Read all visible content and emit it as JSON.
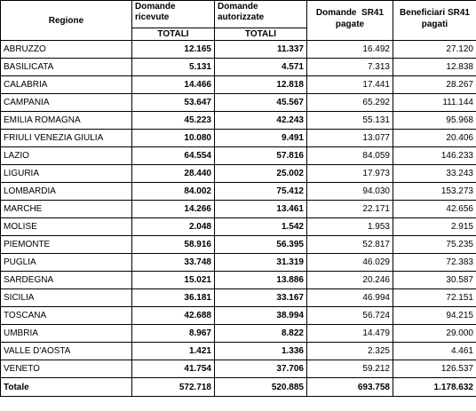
{
  "header": {
    "region": "Regione",
    "received_line1": "Domande",
    "received_line2": "ricevute",
    "received_sub": "TOTALI",
    "authorized_line1": "Domande",
    "authorized_line2": "autorizzate",
    "authorized_sub": "TOTALI",
    "paid_line1": "Domande  SR41",
    "paid_line2": "pagate",
    "beneficiaries_line1": "Beneficiari SR41",
    "beneficiaries_line2": "pagati"
  },
  "rows": [
    {
      "region": "ABRUZZO",
      "received": "12.165",
      "authorized": "11.337",
      "paid": "16.492",
      "beneficiaries": "27.120"
    },
    {
      "region": "BASILICATA",
      "received": "5.131",
      "authorized": "4.571",
      "paid": "7.313",
      "beneficiaries": "12.838"
    },
    {
      "region": "CALABRIA",
      "received": "14.466",
      "authorized": "12.818",
      "paid": "17.441",
      "beneficiaries": "28.267"
    },
    {
      "region": "CAMPANIA",
      "received": "53.647",
      "authorized": "45.567",
      "paid": "65.292",
      "beneficiaries": "111.144"
    },
    {
      "region": "EMILIA ROMAGNA",
      "received": "45.223",
      "authorized": "42.243",
      "paid": "55.131",
      "beneficiaries": "95.968"
    },
    {
      "region": "FRIULI VENEZIA GIULIA",
      "received": "10.080",
      "authorized": "9.491",
      "paid": "13.077",
      "beneficiaries": "20.406"
    },
    {
      "region": "LAZIO",
      "received": "64.554",
      "authorized": "57.816",
      "paid": "84.059",
      "beneficiaries": "146.233"
    },
    {
      "region": "LIGURIA",
      "received": "28.440",
      "authorized": "25.002",
      "paid": "17.973",
      "beneficiaries": "33.243"
    },
    {
      "region": "LOMBARDIA",
      "received": "84.002",
      "authorized": "75.412",
      "paid": "94.030",
      "beneficiaries": "153.273"
    },
    {
      "region": "MARCHE",
      "received": "14.266",
      "authorized": "13.461",
      "paid": "22.171",
      "beneficiaries": "42.656"
    },
    {
      "region": "MOLISE",
      "received": "2.048",
      "authorized": "1.542",
      "paid": "1.953",
      "beneficiaries": "2.915"
    },
    {
      "region": "PIEMONTE",
      "received": "58.916",
      "authorized": "56.395",
      "paid": "52.817",
      "beneficiaries": "75.235"
    },
    {
      "region": "PUGLIA",
      "received": "33.748",
      "authorized": "31.319",
      "paid": "46.029",
      "beneficiaries": "72.383"
    },
    {
      "region": "SARDEGNA",
      "received": "15.021",
      "authorized": "13.886",
      "paid": "20.246",
      "beneficiaries": "30.587"
    },
    {
      "region": "SICILIA",
      "received": "36.181",
      "authorized": "33.167",
      "paid": "46.994",
      "beneficiaries": "72.151"
    },
    {
      "region": "TOSCANA",
      "received": "42.688",
      "authorized": "38.994",
      "paid": "56.724",
      "beneficiaries": "94.215"
    },
    {
      "region": "UMBRIA",
      "received": "8.967",
      "authorized": "8.822",
      "paid": "14.479",
      "beneficiaries": "29.000"
    },
    {
      "region": "VALLE D'AOSTA",
      "received": "1.421",
      "authorized": "1.336",
      "paid": "2.325",
      "beneficiaries": "4.461"
    },
    {
      "region": "VENETO",
      "received": "41.754",
      "authorized": "37.706",
      "paid": "59.212",
      "beneficiaries": "126.537"
    }
  ],
  "total": {
    "label": "Totale",
    "received": "572.718",
    "authorized": "520.885",
    "paid": "693.758",
    "beneficiaries": "1.178.632"
  }
}
